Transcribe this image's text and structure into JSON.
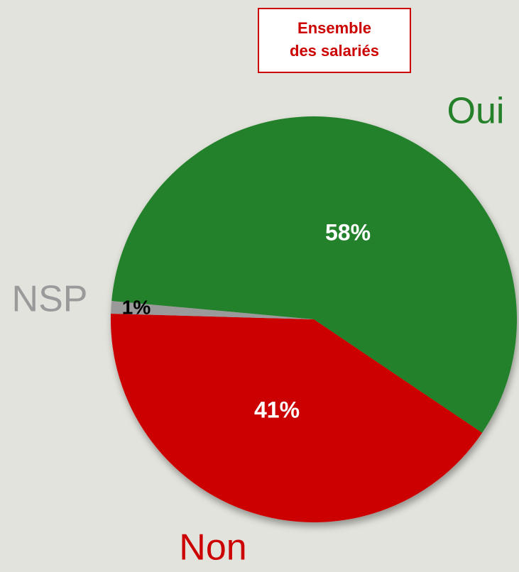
{
  "chart_data": {
    "type": "pie",
    "title": [
      "Ensemble",
      "des salariés"
    ],
    "categories": [
      "Oui",
      "Non",
      "NSP"
    ],
    "values": [
      58,
      41,
      1
    ],
    "value_labels": [
      "58%",
      "41%",
      "1%"
    ],
    "colors": [
      "#24812a",
      "#cc0000",
      "#9a9a9a"
    ]
  }
}
